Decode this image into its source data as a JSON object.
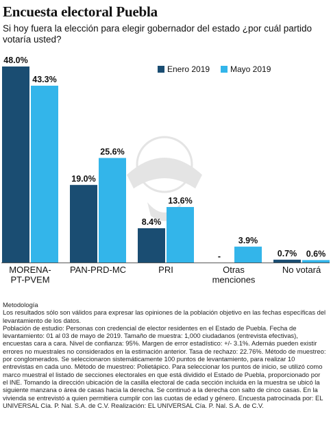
{
  "title": "Encuesta electoral Puebla",
  "subtitle": "Si hoy fuera la elección para elegir gobernador del estado ¿por cuál partido votaría usted?",
  "chart_data": {
    "type": "bar",
    "categories": [
      {
        "lines": [
          "MORENA-",
          "PT-PVEM"
        ]
      },
      {
        "lines": [
          "PAN-PRD-MC"
        ]
      },
      {
        "lines": [
          "PRI"
        ]
      },
      {
        "lines": [
          "Otras",
          "menciones"
        ]
      },
      {
        "lines": [
          "No votará"
        ]
      }
    ],
    "series": [
      {
        "name": "Enero 2019",
        "color": "#1a4d72",
        "values": [
          48.0,
          19.0,
          8.4,
          null,
          0.7
        ],
        "labels": [
          "48.0%",
          "19.0%",
          "8.4%",
          "-",
          "0.7%"
        ]
      },
      {
        "name": "Mayo 2019",
        "color": "#33b5ea",
        "values": [
          43.3,
          25.6,
          13.6,
          3.9,
          0.6
        ],
        "labels": [
          "43.3%",
          "25.6%",
          "13.6%",
          "3.9%",
          "0.6%"
        ]
      }
    ],
    "ylim": [
      0,
      48
    ],
    "legend_position": "top-right",
    "grid": false
  },
  "notes": {
    "heading": "Metodología",
    "body": "Los resultados sólo son válidos para expresar las opiniones de la población objetivo en las fechas específicas del levantamiento de los datos.",
    "study": "Población de estudio: Personas con credencial de elector residentes en el Estado de Puebla. Fecha de levantamiento: 01 al 03 de mayo de 2019. Tamaño de muestra: 1,000 ciudadanos (entrevista efectivas), encuestas cara a cara. Nivel de confianza: 95%. Margen de error estadístico: +/- 3.1%. Además pueden existir errores no muestrales no considerados en la estimación anterior. Tasa de rechazo: 22.76%. Método de muestreo: por conglomerados. Se seleccionaron sistemáticamente 100 puntos de levantamiento, para realizar 10 entrevistas en cada uno. Método de muestreo: Polietápico. Para seleccionar los puntos de inicio, se utilizó como marco muestral el listado de secciones electorales en que está dividido el Estado de Puebla, proporcionado por el INE. Tomando la dirección ubicación de la casilla electoral de cada sección incluida en la muestra se ubicó la siguiente manzana o área de casas hacia la derecha. Se continuó a la derecha con salto de cinco casas. En la vivienda se entrevistó a quien permitiera cumplir con las cuotas de edad y género. Encuesta patrocinada por: EL UNIVERSAL Cía. P. Nal. S.A. de C.V. Realización: EL UNIVERSAL Cía. P. Nal. S.A. de C.V."
  }
}
